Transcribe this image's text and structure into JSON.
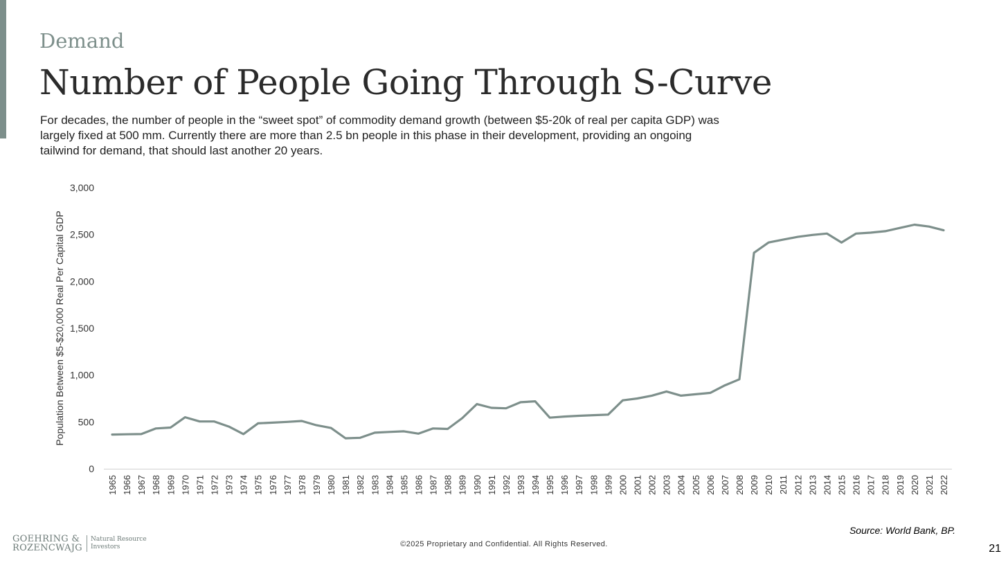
{
  "slide": {
    "section": "Demand",
    "title": "Number of People Going Through S-Curve",
    "subtitle": "For decades, the number of people in the “sweet spot” of commodity demand growth (between $5-20k of real per capita GDP) was largely fixed at 500 mm. Currently there are more than 2.5 bn people in this phase in their development, providing an ongoing tailwind for demand, that should last another 20 years.",
    "source": "Source: World Bank, BP.",
    "footer": "©2025 Proprietary and Confidential. All Rights Reserved.",
    "page_number": "21",
    "logo": {
      "line1": "GOEHRING &",
      "line2": "ROZENCWAJG",
      "sub1": "Natural Resource",
      "sub2": "Investors"
    }
  },
  "colors": {
    "accent": "#7d8f8b",
    "line": "#7d8f8b",
    "axis": "#d0d0d0",
    "text": "#222222"
  },
  "chart_data": {
    "type": "line",
    "title": "",
    "xlabel": "",
    "ylabel": "Population Between $5-$20,000 Real Per Capital GDP",
    "ylim": [
      0,
      3000
    ],
    "yticks": [
      0,
      500,
      1000,
      1500,
      2000,
      2500,
      3000
    ],
    "ytick_labels": [
      "0",
      "500",
      "1,000",
      "1,500",
      "2,000",
      "2,500",
      "3,000"
    ],
    "grid": false,
    "categories": [
      "1965",
      "1966",
      "1967",
      "1968",
      "1969",
      "1970",
      "1971",
      "1972",
      "1973",
      "1974",
      "1975",
      "1976",
      "1977",
      "1978",
      "1979",
      "1980",
      "1981",
      "1982",
      "1983",
      "1984",
      "1985",
      "1986",
      "1987",
      "1988",
      "1989",
      "1990",
      "1991",
      "1992",
      "1993",
      "1994",
      "1995",
      "1996",
      "1997",
      "1998",
      "1999",
      "2000",
      "2001",
      "2002",
      "2003",
      "2004",
      "2005",
      "2006",
      "2007",
      "2008",
      "2009",
      "2010",
      "2011",
      "2012",
      "2013",
      "2014",
      "2015",
      "2016",
      "2017",
      "2018",
      "2019",
      "2020",
      "2021",
      "2022"
    ],
    "series": [
      {
        "name": "Population",
        "values": [
          365,
          368,
          370,
          430,
          440,
          550,
          505,
          505,
          450,
          370,
          485,
          492,
          500,
          510,
          465,
          435,
          325,
          330,
          385,
          393,
          400,
          375,
          430,
          425,
          540,
          690,
          650,
          645,
          710,
          720,
          545,
          557,
          565,
          572,
          578,
          730,
          750,
          780,
          825,
          780,
          795,
          810,
          890,
          955,
          2305,
          2415,
          2445,
          2475,
          2495,
          2510,
          2415,
          2510,
          2520,
          2535,
          2570,
          2605,
          2585,
          2545
        ]
      }
    ]
  }
}
